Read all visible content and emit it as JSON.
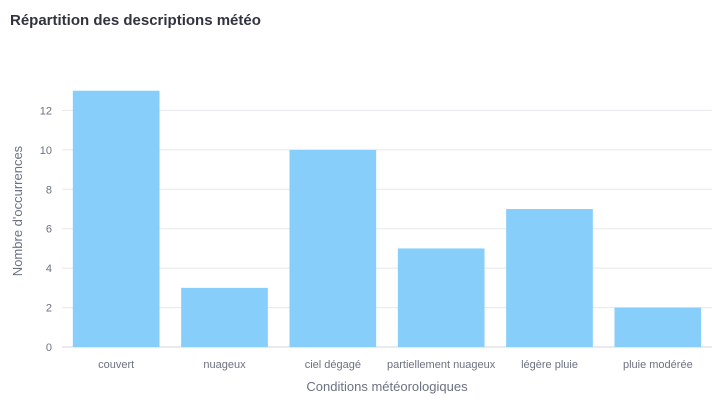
{
  "chart_data": {
    "type": "bar",
    "title": "Répartition des descriptions météo",
    "xlabel": "Conditions météorologiques",
    "ylabel": "Nombre d'occurrences",
    "categories": [
      "couvert",
      "nuageux",
      "ciel dégagé",
      "partiellement nuageux",
      "légère pluie",
      "pluie modérée"
    ],
    "values": [
      13,
      3,
      10,
      5,
      7,
      2
    ],
    "ylim": [
      0,
      14
    ],
    "yticks": [
      0,
      2,
      4,
      6,
      8,
      10,
      12
    ],
    "grid": true,
    "bar_color": "#87cefa",
    "grid_color": "#e6e8ec"
  }
}
